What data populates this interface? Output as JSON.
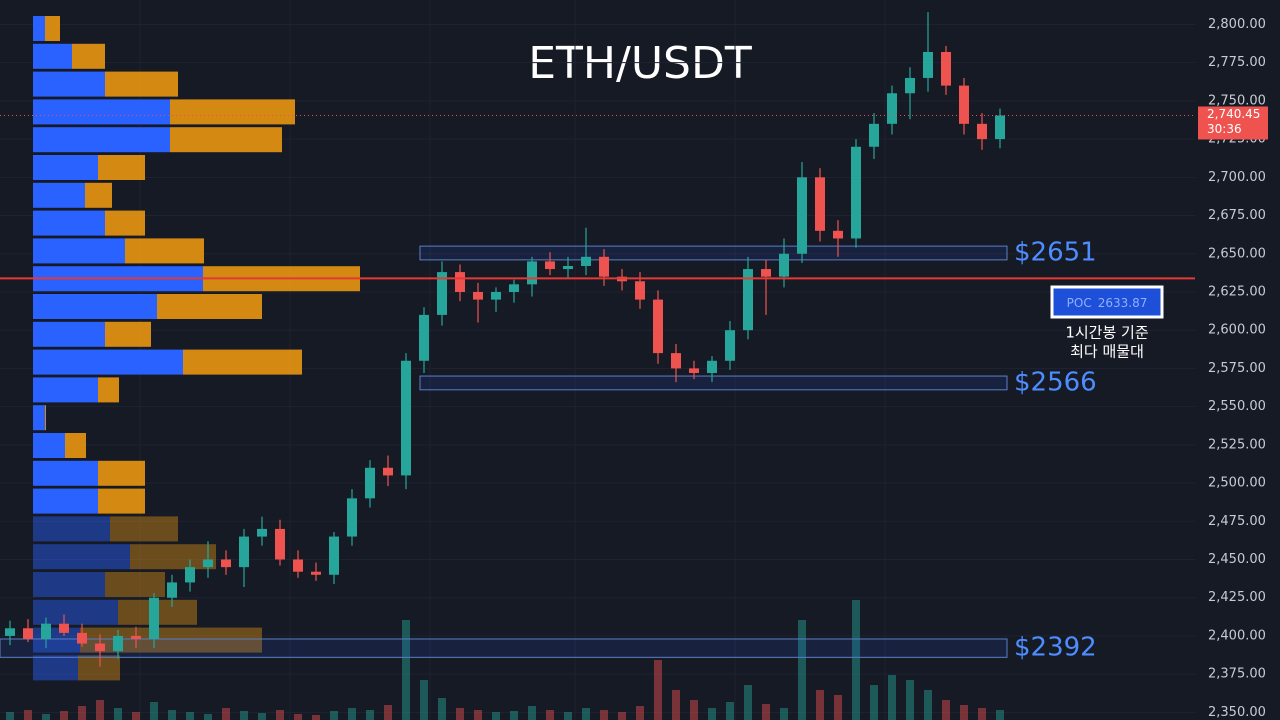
{
  "chart_data": {
    "type": "candlestick",
    "title": "ETH/USDT",
    "open": [
      2400,
      2405,
      2398,
      2408,
      2402,
      2395,
      2390,
      2400,
      2398,
      2425,
      2435,
      2445,
      2450,
      2445,
      2465,
      2470,
      2450,
      2442,
      2440,
      2465,
      2490,
      2510,
      2505,
      2580,
      2610,
      2638,
      2625,
      2620,
      2625,
      2630,
      2645,
      2640,
      2642,
      2648,
      2635,
      2632,
      2620,
      2585,
      2575,
      2572,
      2580,
      2600,
      2640,
      2635,
      2650,
      2700,
      2665,
      2660,
      2720,
      2735,
      2755,
      2765,
      2782,
      2760,
      2735,
      2725
    ],
    "high": [
      2410,
      2411,
      2412,
      2414,
      2408,
      2401,
      2404,
      2406,
      2428,
      2440,
      2450,
      2462,
      2456,
      2470,
      2478,
      2476,
      2456,
      2448,
      2468,
      2496,
      2515,
      2518,
      2585,
      2615,
      2645,
      2643,
      2631,
      2628,
      2633,
      2648,
      2651,
      2648,
      2667,
      2653,
      2640,
      2638,
      2626,
      2591,
      2580,
      2583,
      2606,
      2648,
      2646,
      2660,
      2710,
      2706,
      2672,
      2725,
      2742,
      2760,
      2772,
      2808,
      2786,
      2765,
      2742,
      2745
    ],
    "low": [
      2394,
      2396,
      2392,
      2400,
      2393,
      2380,
      2385,
      2392,
      2392,
      2419,
      2429,
      2438,
      2440,
      2432,
      2459,
      2446,
      2438,
      2436,
      2434,
      2459,
      2484,
      2498,
      2496,
      2572,
      2603,
      2619,
      2605,
      2612,
      2618,
      2622,
      2636,
      2634,
      2636,
      2629,
      2626,
      2614,
      2578,
      2566,
      2568,
      2566,
      2574,
      2594,
      2610,
      2628,
      2644,
      2658,
      2648,
      2654,
      2712,
      2728,
      2738,
      2756,
      2754,
      2728,
      2718,
      2719
    ],
    "close": [
      2405,
      2398,
      2408,
      2402,
      2395,
      2390,
      2400,
      2398,
      2425,
      2435,
      2445,
      2450,
      2445,
      2465,
      2470,
      2450,
      2442,
      2440,
      2465,
      2490,
      2510,
      2505,
      2580,
      2610,
      2638,
      2625,
      2620,
      2625,
      2630,
      2645,
      2640,
      2642,
      2648,
      2635,
      2632,
      2620,
      2585,
      2575,
      2572,
      2580,
      2600,
      2640,
      2635,
      2650,
      2700,
      2665,
      2660,
      2720,
      2735,
      2755,
      2765,
      2782,
      2760,
      2735,
      2725,
      2740.45
    ],
    "volume": [
      8,
      10,
      6,
      9,
      14,
      20,
      12,
      8,
      18,
      10,
      8,
      6,
      12,
      9,
      7,
      10,
      6,
      5,
      9,
      12,
      10,
      15,
      100,
      40,
      22,
      12,
      10,
      8,
      9,
      14,
      10,
      8,
      12,
      10,
      8,
      14,
      60,
      30,
      20,
      12,
      18,
      35,
      16,
      12,
      100,
      30,
      25,
      120,
      35,
      45,
      40,
      30,
      20,
      15,
      12,
      10
    ],
    "volume_profile": {
      "buy": [
        12,
        39,
        72,
        137,
        137,
        65,
        52,
        72,
        92,
        170,
        124,
        72,
        150,
        65,
        12,
        32,
        65,
        65,
        77,
        97,
        72,
        85,
        47,
        45
      ],
      "sell": [
        15,
        33,
        73,
        125,
        112,
        47,
        27,
        40,
        79,
        157,
        105,
        46,
        119,
        21,
        1,
        21,
        47,
        47,
        68,
        86,
        60,
        79,
        182,
        42
      ]
    },
    "ylim": [
      2345,
      2816
    ],
    "yticks": [
      {
        "value": 2350,
        "label": "2,350.00"
      },
      {
        "value": 2375,
        "label": "2,375.00"
      },
      {
        "value": 2400,
        "label": "2,400.00"
      },
      {
        "value": 2425,
        "label": "2,425.00"
      },
      {
        "value": 2450,
        "label": "2,450.00"
      },
      {
        "value": 2475,
        "label": "2,475.00"
      },
      {
        "value": 2500,
        "label": "2,500.00"
      },
      {
        "value": 2525,
        "label": "2,525.00"
      },
      {
        "value": 2550,
        "label": "2,550.00"
      },
      {
        "value": 2575,
        "label": "2,575.00"
      },
      {
        "value": 2600,
        "label": "2,600.00"
      },
      {
        "value": 2625,
        "label": "2,625.00"
      },
      {
        "value": 2650,
        "label": "2,650.00"
      },
      {
        "value": 2675,
        "label": "2,675.00"
      },
      {
        "value": 2700,
        "label": "2,700.00"
      },
      {
        "value": 2725,
        "label": "2,725.00"
      },
      {
        "value": 2750,
        "label": "2,750.00"
      },
      {
        "value": 2775,
        "label": "2,775.00"
      },
      {
        "value": 2800,
        "label": "2,800.00"
      }
    ],
    "up_color": "#26a69a",
    "down_color": "#ef5350",
    "zones": [
      {
        "label": "$2651",
        "low": 2646,
        "high": 2655
      },
      {
        "label": "$2566",
        "low": 2561,
        "high": 2570
      },
      {
        "label": "$2392",
        "low": 2386,
        "high": 2398
      }
    ],
    "poc": {
      "label": "POC",
      "value": 2633.87,
      "note": [
        "1시간봉 기준",
        "최다 매물대"
      ]
    },
    "last_price": {
      "value": 2740.45,
      "label": "2,740.45"
    },
    "countdown": "30:36"
  }
}
